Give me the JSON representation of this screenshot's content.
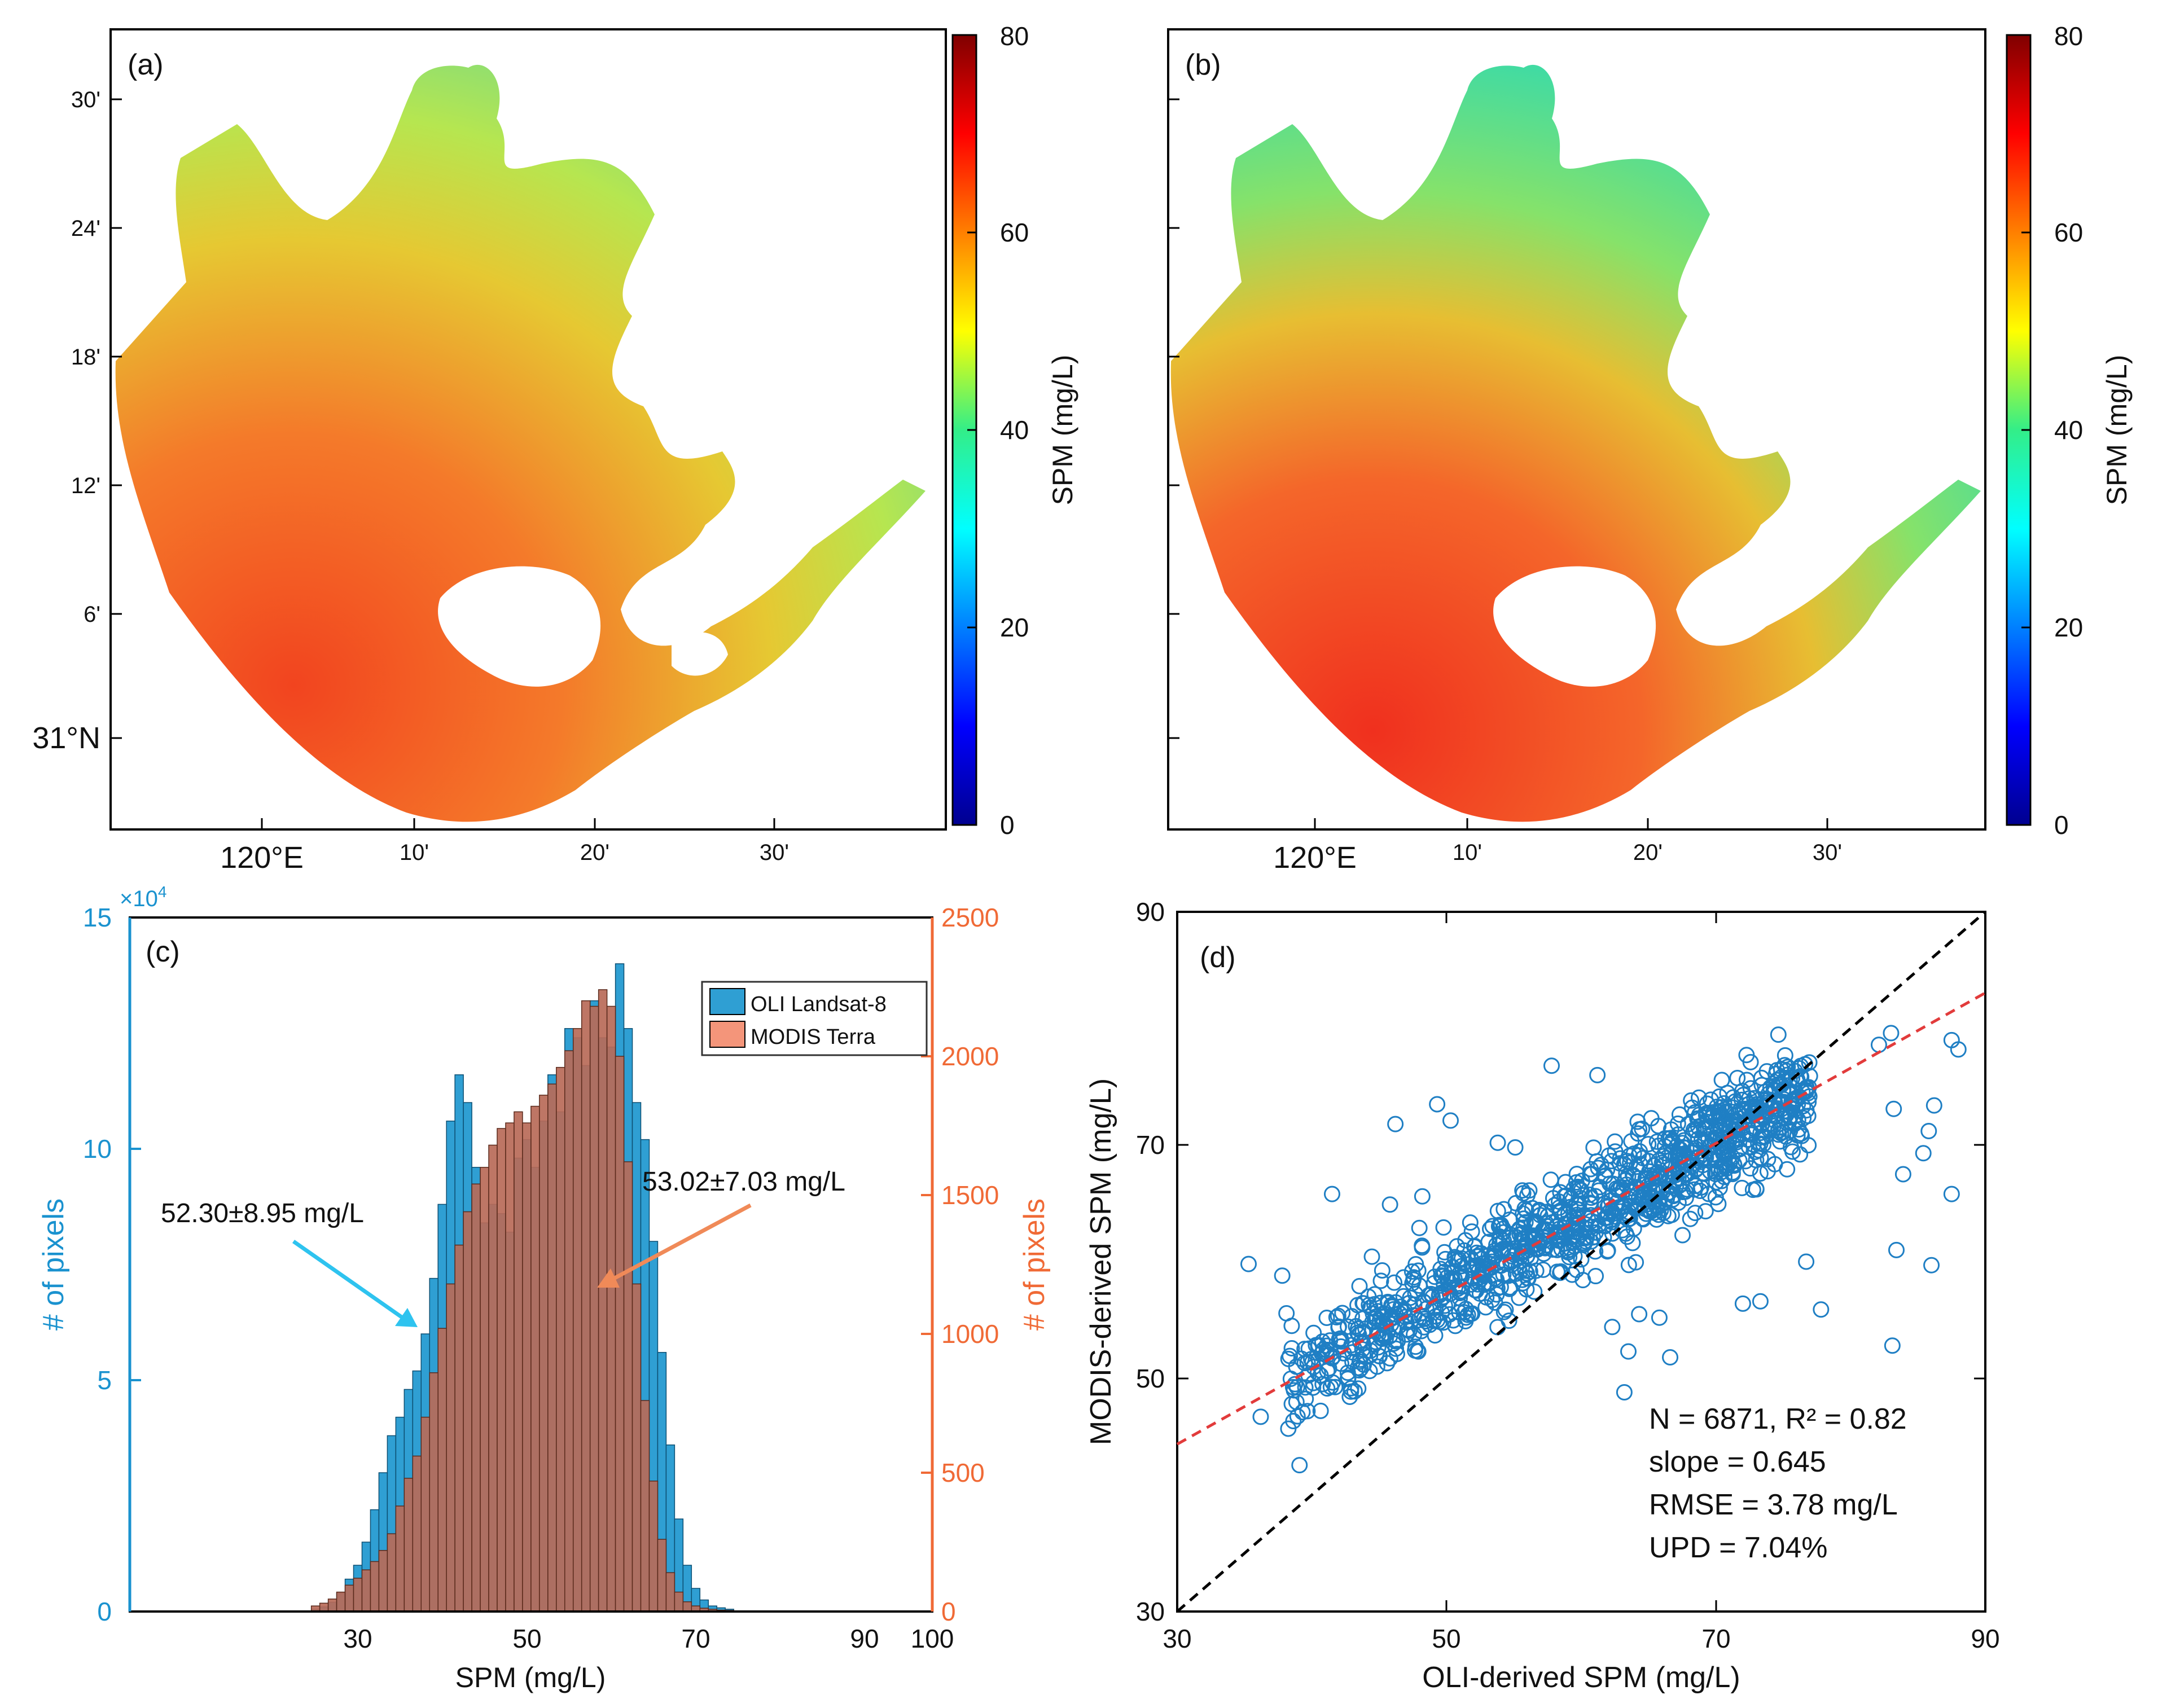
{
  "colors": {
    "oli": "#2f9fd3",
    "modis": "#f08a67",
    "modis_axis": "#f06a36",
    "oli_axis": "#1a92cf",
    "scatter": "#1f7fc4",
    "one_to_one": "#000000",
    "fit": "#e23b3b"
  },
  "panel_a": {
    "label": "(a)",
    "colorbar_label": "SPM (mg/L)",
    "colorbar_ticks": [
      "0",
      "20",
      "40",
      "60",
      "80"
    ],
    "lat_ticks": [
      "30'",
      "24'",
      "18'",
      "12'",
      "6'",
      "31°N"
    ],
    "lon_ticks": [
      "120°E",
      "10'",
      "20'",
      "30'"
    ]
  },
  "panel_b": {
    "label": "(b)",
    "colorbar_label": "SPM (mg/L)",
    "colorbar_ticks": [
      "0",
      "20",
      "40",
      "60",
      "80"
    ],
    "lon_ticks": [
      "120°E",
      "10'",
      "20'",
      "30'"
    ]
  },
  "chart_data": [
    {
      "panel": "(c)",
      "type": "bar",
      "title": "",
      "xlabel": "SPM (mg/L)",
      "ylabel_left": "# of pixels",
      "ylabel_right": "# of pixels",
      "left_multiplier": "×10",
      "left_multiplier_exp": "4",
      "xlim": [
        5,
        100
      ],
      "ylim_left": [
        0,
        15
      ],
      "ylim_right": [
        0,
        2500
      ],
      "x_ticks": [
        "30",
        "50",
        "70",
        "90",
        "100"
      ],
      "y_left_ticks": [
        "0",
        "5",
        "10",
        "15"
      ],
      "y_right_ticks": [
        "0",
        "500",
        "1000",
        "1500",
        "2000",
        "2500"
      ],
      "legend": [
        "OLI Landsat-8",
        "MODIS Terra"
      ],
      "legend_position": "top-right",
      "annotations": {
        "oli_mean": "52.30±8.95 mg/L",
        "modis_mean": "53.02±7.03 mg/L"
      },
      "series": [
        {
          "name": "OLI Landsat-8",
          "axis": "left",
          "x": [
            25,
            26,
            27,
            28,
            29,
            30,
            31,
            32,
            33,
            34,
            35,
            36,
            37,
            38,
            39,
            40,
            41,
            42,
            43,
            44,
            45,
            46,
            47,
            48,
            49,
            50,
            51,
            52,
            53,
            54,
            55,
            56,
            57,
            58,
            59,
            60,
            61,
            62,
            63,
            64,
            65,
            66,
            67,
            68,
            69,
            70,
            71,
            72,
            73,
            74
          ],
          "values": [
            0.05,
            0.1,
            0.2,
            0.4,
            0.7,
            1.0,
            1.5,
            2.2,
            3.0,
            3.8,
            4.2,
            4.8,
            5.2,
            6.0,
            7.2,
            8.8,
            10.6,
            11.6,
            11.0,
            9.6,
            8.4,
            8.8,
            8.6,
            8.2,
            9.8,
            10.2,
            9.6,
            10.6,
            11.6,
            10.8,
            12.6,
            12.4,
            11.8,
            13.2,
            12.4,
            12.2,
            14.0,
            12.6,
            11.0,
            10.2,
            8.0,
            5.6,
            3.6,
            2.0,
            1.0,
            0.5,
            0.25,
            0.12,
            0.08,
            0.05
          ]
        },
        {
          "name": "MODIS Terra",
          "axis": "right",
          "x": [
            25,
            26,
            27,
            28,
            29,
            30,
            31,
            32,
            33,
            34,
            35,
            36,
            37,
            38,
            39,
            40,
            41,
            42,
            43,
            44,
            45,
            46,
            47,
            48,
            49,
            50,
            51,
            52,
            53,
            54,
            55,
            56,
            57,
            58,
            59,
            60,
            61,
            62,
            63,
            64,
            65,
            66,
            67,
            68,
            69,
            70,
            71,
            72,
            73,
            74
          ],
          "values": [
            20,
            30,
            45,
            70,
            95,
            120,
            150,
            180,
            220,
            280,
            380,
            480,
            560,
            700,
            860,
            1020,
            1180,
            1320,
            1440,
            1540,
            1600,
            1680,
            1740,
            1760,
            1800,
            1760,
            1820,
            1860,
            1900,
            1960,
            2020,
            2100,
            2200,
            2180,
            2240,
            2180,
            2000,
            1620,
            1180,
            760,
            470,
            260,
            140,
            70,
            35,
            20,
            12,
            8,
            5,
            4
          ]
        }
      ]
    },
    {
      "panel": "(d)",
      "type": "scatter",
      "title": "",
      "xlabel": "OLI-derived SPM (mg/L)",
      "ylabel": "MODIS-derived SPM (mg/L)",
      "xlim": [
        30,
        90
      ],
      "ylim": [
        30,
        90
      ],
      "x_ticks": [
        "30",
        "50",
        "70",
        "90"
      ],
      "y_ticks": [
        "30",
        "50",
        "70",
        "90"
      ],
      "fit": {
        "slope": 0.645,
        "intercept": 25.0
      },
      "stats": [
        "N = 6871, R² = 0.82",
        "slope = 0.645",
        "RMSE = 3.78 mg/L",
        "UPD = 7.04%"
      ],
      "outliers": [
        [
          35.3,
          59.8
        ],
        [
          37.8,
          58.8
        ],
        [
          41.5,
          65.8
        ],
        [
          46.2,
          71.8
        ],
        [
          48.2,
          65.6
        ],
        [
          49.3,
          73.5
        ],
        [
          50.3,
          72.1
        ],
        [
          53.8,
          70.2
        ],
        [
          55.1,
          69.8
        ],
        [
          57.8,
          76.8
        ],
        [
          61.2,
          76.0
        ],
        [
          62.5,
          70.3
        ],
        [
          62.3,
          54.4
        ],
        [
          60.0,
          60.2
        ],
        [
          63.5,
          52.3
        ],
        [
          63.2,
          48.8
        ],
        [
          66.6,
          51.8
        ],
        [
          64.3,
          55.5
        ],
        [
          65.8,
          55.2
        ],
        [
          72.0,
          56.4
        ],
        [
          73.3,
          56.6
        ],
        [
          76.7,
          60.0
        ],
        [
          77.8,
          55.9
        ],
        [
          73.0,
          66.2
        ],
        [
          82.1,
          78.6
        ],
        [
          83.0,
          79.6
        ],
        [
          83.2,
          73.1
        ],
        [
          83.9,
          67.5
        ],
        [
          85.4,
          69.3
        ],
        [
          85.8,
          71.2
        ],
        [
          86.2,
          73.4
        ],
        [
          86.0,
          59.7
        ],
        [
          83.4,
          61.0
        ],
        [
          83.1,
          52.8
        ],
        [
          87.5,
          65.8
        ],
        [
          87.5,
          79.0
        ],
        [
          88.0,
          78.2
        ],
        [
          39.3,
          47.1
        ],
        [
          36.2,
          46.7
        ],
        [
          40.8,
          49.5
        ],
        [
          44.2,
          57.0
        ],
        [
          45.8,
          64.9
        ]
      ]
    }
  ]
}
